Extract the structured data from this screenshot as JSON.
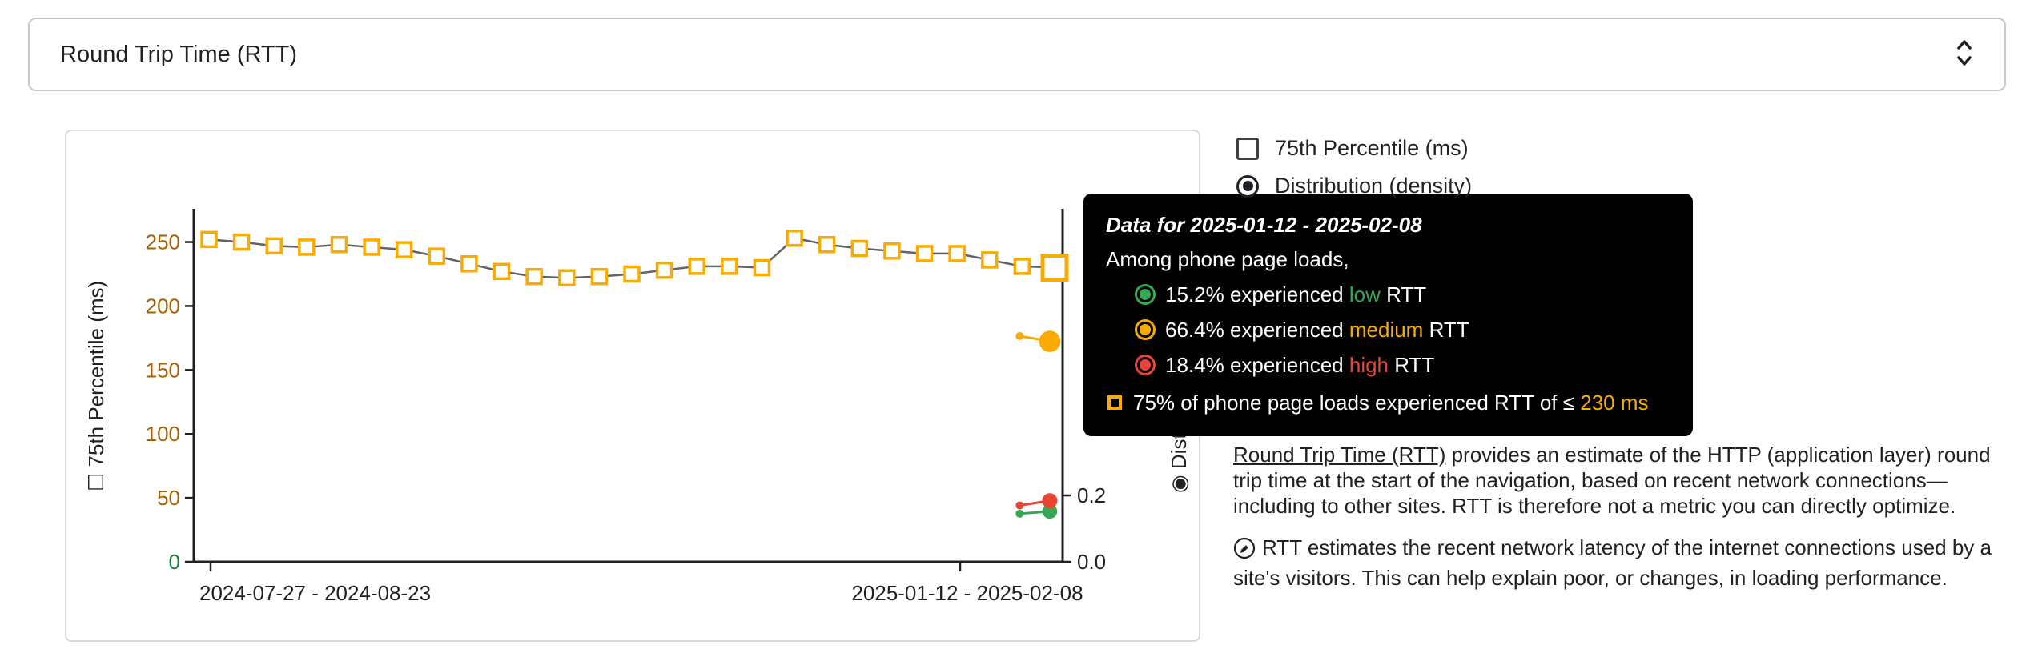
{
  "metric_selector": {
    "value": "Round Trip Time (RTT)"
  },
  "legend": {
    "items": [
      {
        "label": "75th Percentile (ms)",
        "type": "checkbox",
        "checked": false
      },
      {
        "label": "Distribution (density)",
        "type": "radio",
        "checked": true
      }
    ]
  },
  "tooltip": {
    "title": "Data for 2025-01-12 - 2025-02-08",
    "intro": "Among phone page loads,",
    "rows": [
      {
        "percent": "15.2%",
        "mid": "experienced",
        "category": "low",
        "tail": "RTT",
        "color": "#34a853"
      },
      {
        "percent": "66.4%",
        "mid": "experienced",
        "category": "medium",
        "tail": "RTT",
        "color": "#f9ab00"
      },
      {
        "percent": "18.4%",
        "mid": "experienced",
        "category": "high",
        "tail": "RTT",
        "color": "#ea4335"
      }
    ],
    "percentile": {
      "prefix": "75% of phone page loads experienced RTT of ≤",
      "value": "230 ms",
      "color": "#f9ab00"
    }
  },
  "description": {
    "link": "Round Trip Time (RTT)",
    "para1": "provides an estimate of the HTTP (application layer) round trip time at the start of the navigation, based on recent network connections—including to other sites. RTT is therefore not a metric you can directly optimize.",
    "para2": "RTT estimates the recent network latency of the internet connections used by a site's visitors. This can help explain poor, or changes, in loading performance."
  },
  "chart_data": {
    "type": "line",
    "x_axis": {
      "tick_labels": [
        "2024-07-27 - 2024-08-23",
        "2025-01-12 - 2025-02-08"
      ]
    },
    "y_left": {
      "title": "75th Percentile (ms)",
      "ticks": [
        0,
        50,
        100,
        150,
        200,
        250
      ],
      "range": [
        0,
        276
      ],
      "tick_color": "#a85f00",
      "zero_tick_color": "#188038"
    },
    "y_right": {
      "title": "Distribution (density)",
      "ticks": [
        "0.0",
        "0.2"
      ],
      "range": [
        0,
        1.063
      ]
    },
    "percentile_series": {
      "name": "75th Percentile (ms)",
      "color": "#f9ab00",
      "marker": "open-square",
      "values": [
        252,
        250,
        247,
        246,
        248,
        246,
        244,
        239,
        233,
        227,
        223,
        222,
        223,
        225,
        228,
        231,
        231,
        230,
        253,
        248,
        245,
        243,
        241,
        241,
        236,
        231,
        230
      ],
      "latest_value_ms": 230
    },
    "distribution_endpoints": [
      {
        "name": "low",
        "color": "#34a853",
        "prev": 0.145,
        "last": 0.152
      },
      {
        "name": "medium",
        "color": "#f9ab00",
        "prev": 0.68,
        "last": 0.664
      },
      {
        "name": "high",
        "color": "#ea4335",
        "prev": 0.17,
        "last": 0.184
      }
    ]
  }
}
